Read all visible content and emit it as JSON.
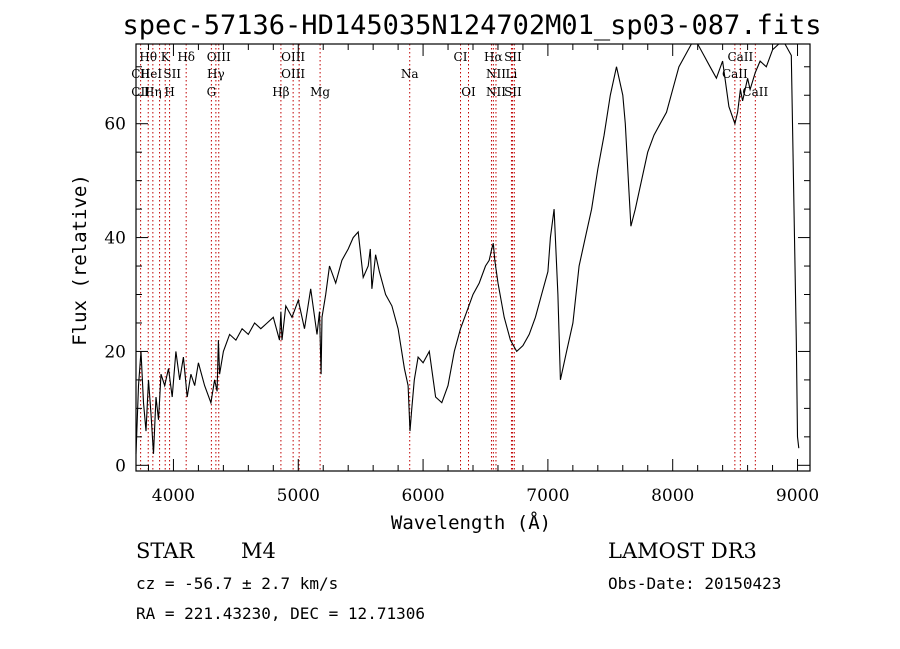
{
  "title": "spec-57136-HD145035N124702M01_sp03-087.fits",
  "chart_data": {
    "type": "line",
    "title": "spec-57136-HD145035N124702M01_sp03-087.fits",
    "xlabel": "Wavelength (Å)",
    "ylabel": "Flux (relative)",
    "xlim": [
      3700,
      9100
    ],
    "ylim": [
      -1,
      74
    ],
    "xticks": [
      4000,
      5000,
      6000,
      7000,
      8000,
      9000
    ],
    "yticks": [
      0,
      20,
      40,
      60
    ],
    "series": [
      {
        "name": "flux",
        "x": [
          3700,
          3720,
          3740,
          3760,
          3780,
          3800,
          3820,
          3840,
          3860,
          3880,
          3900,
          3930,
          3960,
          3990,
          4020,
          4050,
          4080,
          4110,
          4140,
          4170,
          4200,
          4250,
          4300,
          4330,
          4350,
          4360,
          4370,
          4400,
          4450,
          4500,
          4550,
          4600,
          4650,
          4700,
          4750,
          4800,
          4850,
          4861,
          4870,
          4900,
          4950,
          5000,
          5050,
          5100,
          5150,
          5170,
          5183,
          5190,
          5220,
          5250,
          5300,
          5350,
          5400,
          5440,
          5480,
          5520,
          5560,
          5577,
          5590,
          5620,
          5650,
          5700,
          5750,
          5800,
          5850,
          5880,
          5895,
          5910,
          5930,
          5960,
          6000,
          6050,
          6100,
          6150,
          6200,
          6250,
          6300,
          6350,
          6400,
          6450,
          6500,
          6530,
          6550,
          6563,
          6575,
          6600,
          6650,
          6700,
          6750,
          6800,
          6850,
          6900,
          6950,
          7000,
          7020,
          7050,
          7080,
          7100,
          7150,
          7200,
          7250,
          7300,
          7350,
          7400,
          7450,
          7500,
          7550,
          7600,
          7620,
          7650,
          7665,
          7700,
          7750,
          7800,
          7850,
          7900,
          7950,
          8000,
          8050,
          8100,
          8150,
          8200,
          8250,
          8300,
          8350,
          8400,
          8450,
          8498,
          8520,
          8542,
          8560,
          8600,
          8620,
          8662,
          8700,
          8750,
          8800,
          8850,
          8900,
          8950,
          8990,
          9000,
          9010
        ],
        "values": [
          2,
          14,
          20,
          11,
          6,
          15,
          9,
          2,
          12,
          8,
          16,
          14,
          17,
          12,
          20,
          15,
          19,
          12,
          16,
          14,
          18,
          14,
          11,
          15,
          13,
          22,
          16,
          20,
          23,
          22,
          24,
          23,
          25,
          24,
          25,
          26,
          22,
          27,
          22,
          28,
          26,
          29,
          24,
          31,
          23,
          27,
          16,
          26,
          30,
          35,
          32,
          36,
          38,
          40,
          41,
          33,
          35,
          38,
          31,
          37,
          34,
          30,
          28,
          24,
          17,
          14,
          6,
          10,
          15,
          19,
          18,
          20,
          12,
          11,
          14,
          20,
          24,
          27,
          30,
          32,
          35,
          36,
          38,
          39,
          36,
          32,
          26,
          22,
          20,
          21,
          23,
          26,
          30,
          34,
          40,
          45,
          30,
          15,
          20,
          25,
          35,
          40,
          45,
          52,
          58,
          65,
          70,
          65,
          60,
          48,
          42,
          45,
          50,
          55,
          58,
          60,
          62,
          66,
          70,
          72,
          76,
          74,
          72,
          70,
          68,
          71,
          63,
          60,
          62,
          66,
          64,
          68,
          66,
          69,
          71,
          70,
          73,
          75,
          74,
          72,
          22,
          5,
          3
        ]
      }
    ],
    "line_labels": [
      {
        "label": "Hθ",
        "wavelength": 3798,
        "row": 1
      },
      {
        "label": "CII",
        "wavelength": 3737,
        "row": 2
      },
      {
        "label": "CII",
        "wavelength": 3737,
        "row": 3
      },
      {
        "label": "HeI",
        "wavelength": 3820,
        "row": 2
      },
      {
        "label": "Hη",
        "wavelength": 3835,
        "row": 3
      },
      {
        "label": "K",
        "wavelength": 3934,
        "row": 1
      },
      {
        "label": "H",
        "wavelength": 3969,
        "row": 3
      },
      {
        "label": "SII",
        "wavelength": 3990,
        "row": 2
      },
      {
        "label": "Hδ",
        "wavelength": 4102,
        "row": 1
      },
      {
        "label": "OIII",
        "wavelength": 4363,
        "row": 1
      },
      {
        "label": "Hγ",
        "wavelength": 4340,
        "row": 2
      },
      {
        "label": "G",
        "wavelength": 4304,
        "row": 3
      },
      {
        "label": "OIII",
        "wavelength": 4959,
        "row": 1
      },
      {
        "label": "OIII",
        "wavelength": 4959,
        "row": 2
      },
      {
        "label": "Hβ",
        "wavelength": 4861,
        "row": 3
      },
      {
        "label": "Mg",
        "wavelength": 5175,
        "row": 3
      },
      {
        "label": "Na",
        "wavelength": 5893,
        "row": 2
      },
      {
        "label": "CI",
        "wavelength": 6300,
        "row": 1
      },
      {
        "label": "OI",
        "wavelength": 6364,
        "row": 3
      },
      {
        "label": "Hα",
        "wavelength": 6563,
        "row": 1
      },
      {
        "label": "SII",
        "wavelength": 6720,
        "row": 1
      },
      {
        "label": "NII",
        "wavelength": 6584,
        "row": 2
      },
      {
        "label": "Li",
        "wavelength": 6708,
        "row": 2
      },
      {
        "label": "NII",
        "wavelength": 6584,
        "row": 3
      },
      {
        "label": "SII",
        "wavelength": 6720,
        "row": 3
      },
      {
        "label": "CaII",
        "wavelength": 8542,
        "row": 1
      },
      {
        "label": "CaII",
        "wavelength": 8498,
        "row": 2
      },
      {
        "label": "CaII",
        "wavelength": 8662,
        "row": 3
      }
    ],
    "line_markers": [
      3737,
      3798,
      3835,
      3889,
      3934,
      3969,
      4102,
      4304,
      4340,
      4363,
      4861,
      4959,
      5007,
      5175,
      5893,
      6300,
      6364,
      6548,
      6563,
      6584,
      6708,
      6717,
      6731,
      8498,
      8542,
      8662
    ]
  },
  "info": {
    "object_type": "STAR",
    "subclass": "M4",
    "survey": "LAMOST DR3",
    "redshift": "cz = -56.7 ± 2.7 km/s",
    "obs_date": "Obs-Date: 20150423",
    "coords": "RA = 221.43230, DEC =  12.71306"
  }
}
